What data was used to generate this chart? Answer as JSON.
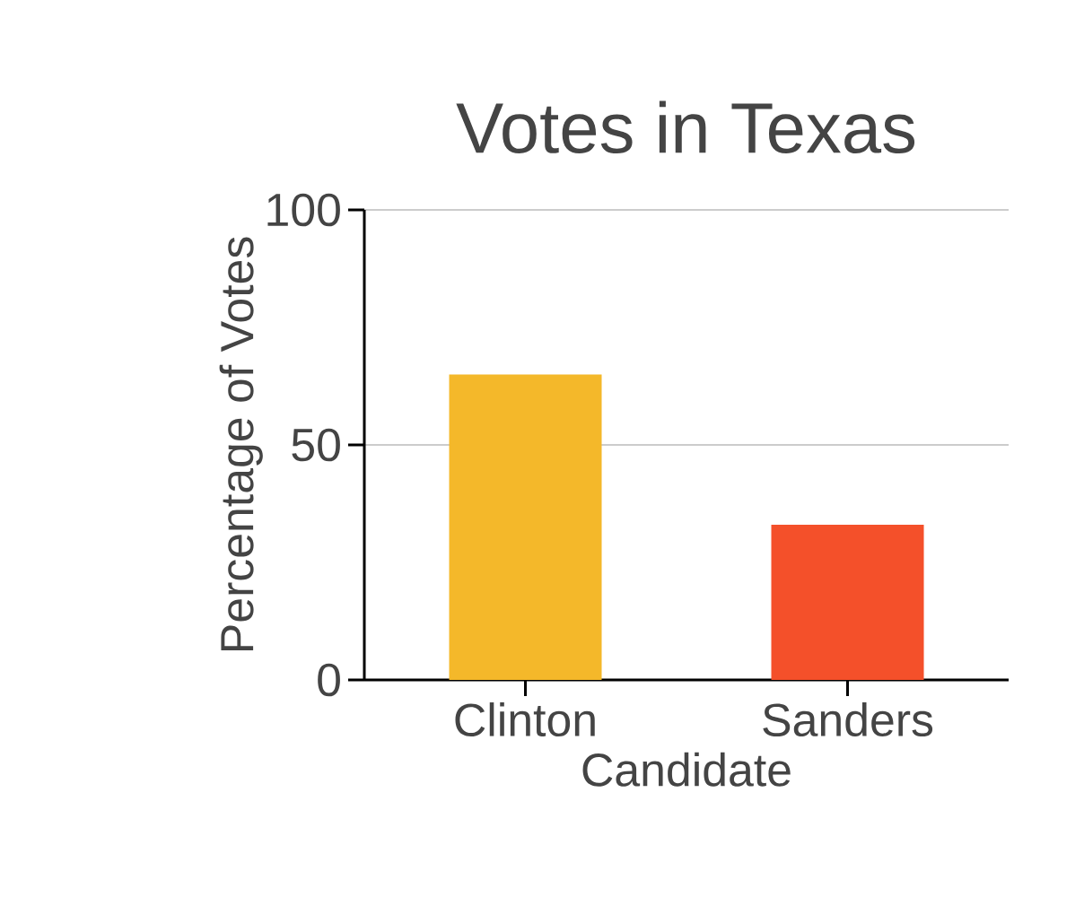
{
  "chart_data": {
    "type": "bar",
    "title": "Votes in Texas",
    "xlabel": "Candidate",
    "ylabel": "Percentage of Votes",
    "categories": [
      "Clinton",
      "Sanders"
    ],
    "values": [
      65,
      33
    ],
    "colors": [
      "#f4b82a",
      "#f4502a"
    ],
    "ylim": [
      0,
      100
    ],
    "yticks": [
      0,
      50,
      100
    ],
    "grid": "y"
  }
}
